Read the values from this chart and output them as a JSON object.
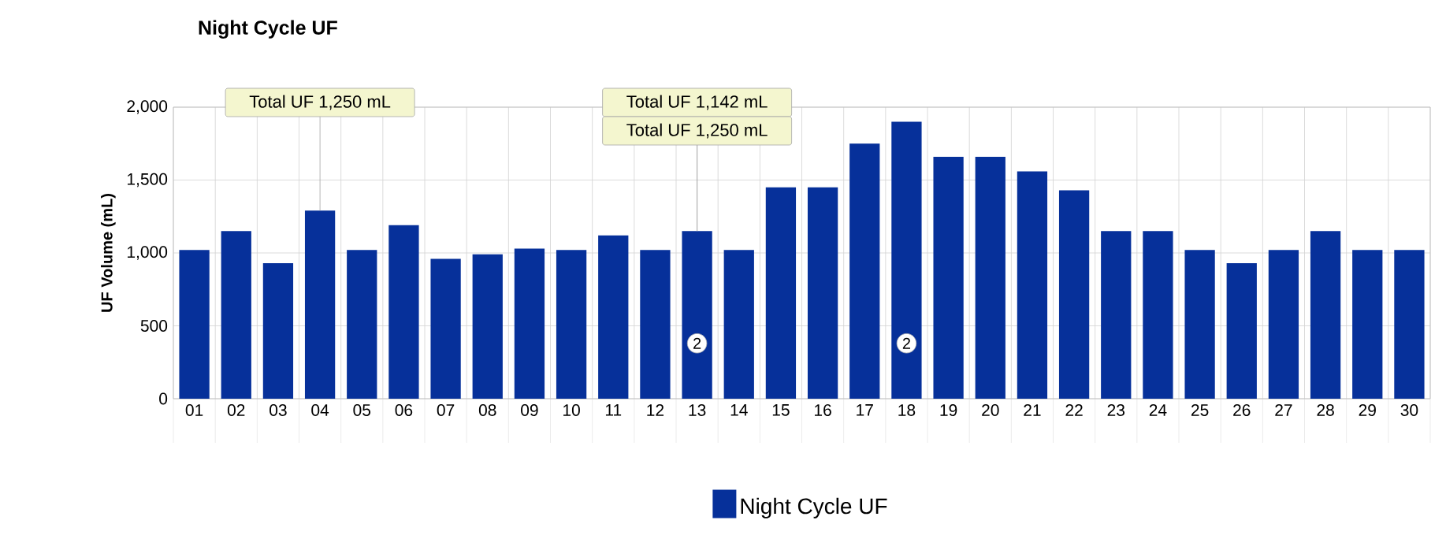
{
  "chart_data": {
    "type": "bar",
    "title": "Night Cycle UF",
    "ylabel": "UF Volume (mL)",
    "categories": [
      "01",
      "02",
      "03",
      "04",
      "05",
      "06",
      "07",
      "08",
      "09",
      "10",
      "11",
      "12",
      "13",
      "14",
      "15",
      "16",
      "17",
      "18",
      "19",
      "20",
      "21",
      "22",
      "23",
      "24",
      "25",
      "26",
      "27",
      "28",
      "29",
      "30"
    ],
    "series": [
      {
        "name": "Night Cycle UF",
        "color": "#06309a",
        "values": [
          1020,
          1150,
          930,
          1290,
          1020,
          1190,
          960,
          990,
          1030,
          1020,
          1120,
          1020,
          1150,
          1020,
          1450,
          1450,
          1750,
          1900,
          1660,
          1660,
          1560,
          1430,
          1150,
          1150,
          1020,
          930,
          1020,
          1150,
          1020,
          1020
        ]
      }
    ],
    "ylim": [
      0,
      2000
    ],
    "yticks": [
      0,
      500,
      {
        "value": 1000,
        "label": "1,000"
      },
      {
        "value": 1500,
        "label": "1,500"
      },
      {
        "value": 2000,
        "label": "2,000"
      }
    ],
    "grid": true,
    "legend": "bottom",
    "annotations": [
      {
        "text": "Total UF 1,250 mL",
        "x": "04",
        "y": 1290
      },
      {
        "text": "Total UF 1,142 mL",
        "x": "13",
        "y": 1150
      },
      {
        "text": "Total UF 1,250 mL",
        "x": "13",
        "y": 1150
      },
      {
        "text": "2",
        "x": "13",
        "y": 380
      },
      {
        "text": "2",
        "x": "18",
        "y": 380
      }
    ]
  }
}
